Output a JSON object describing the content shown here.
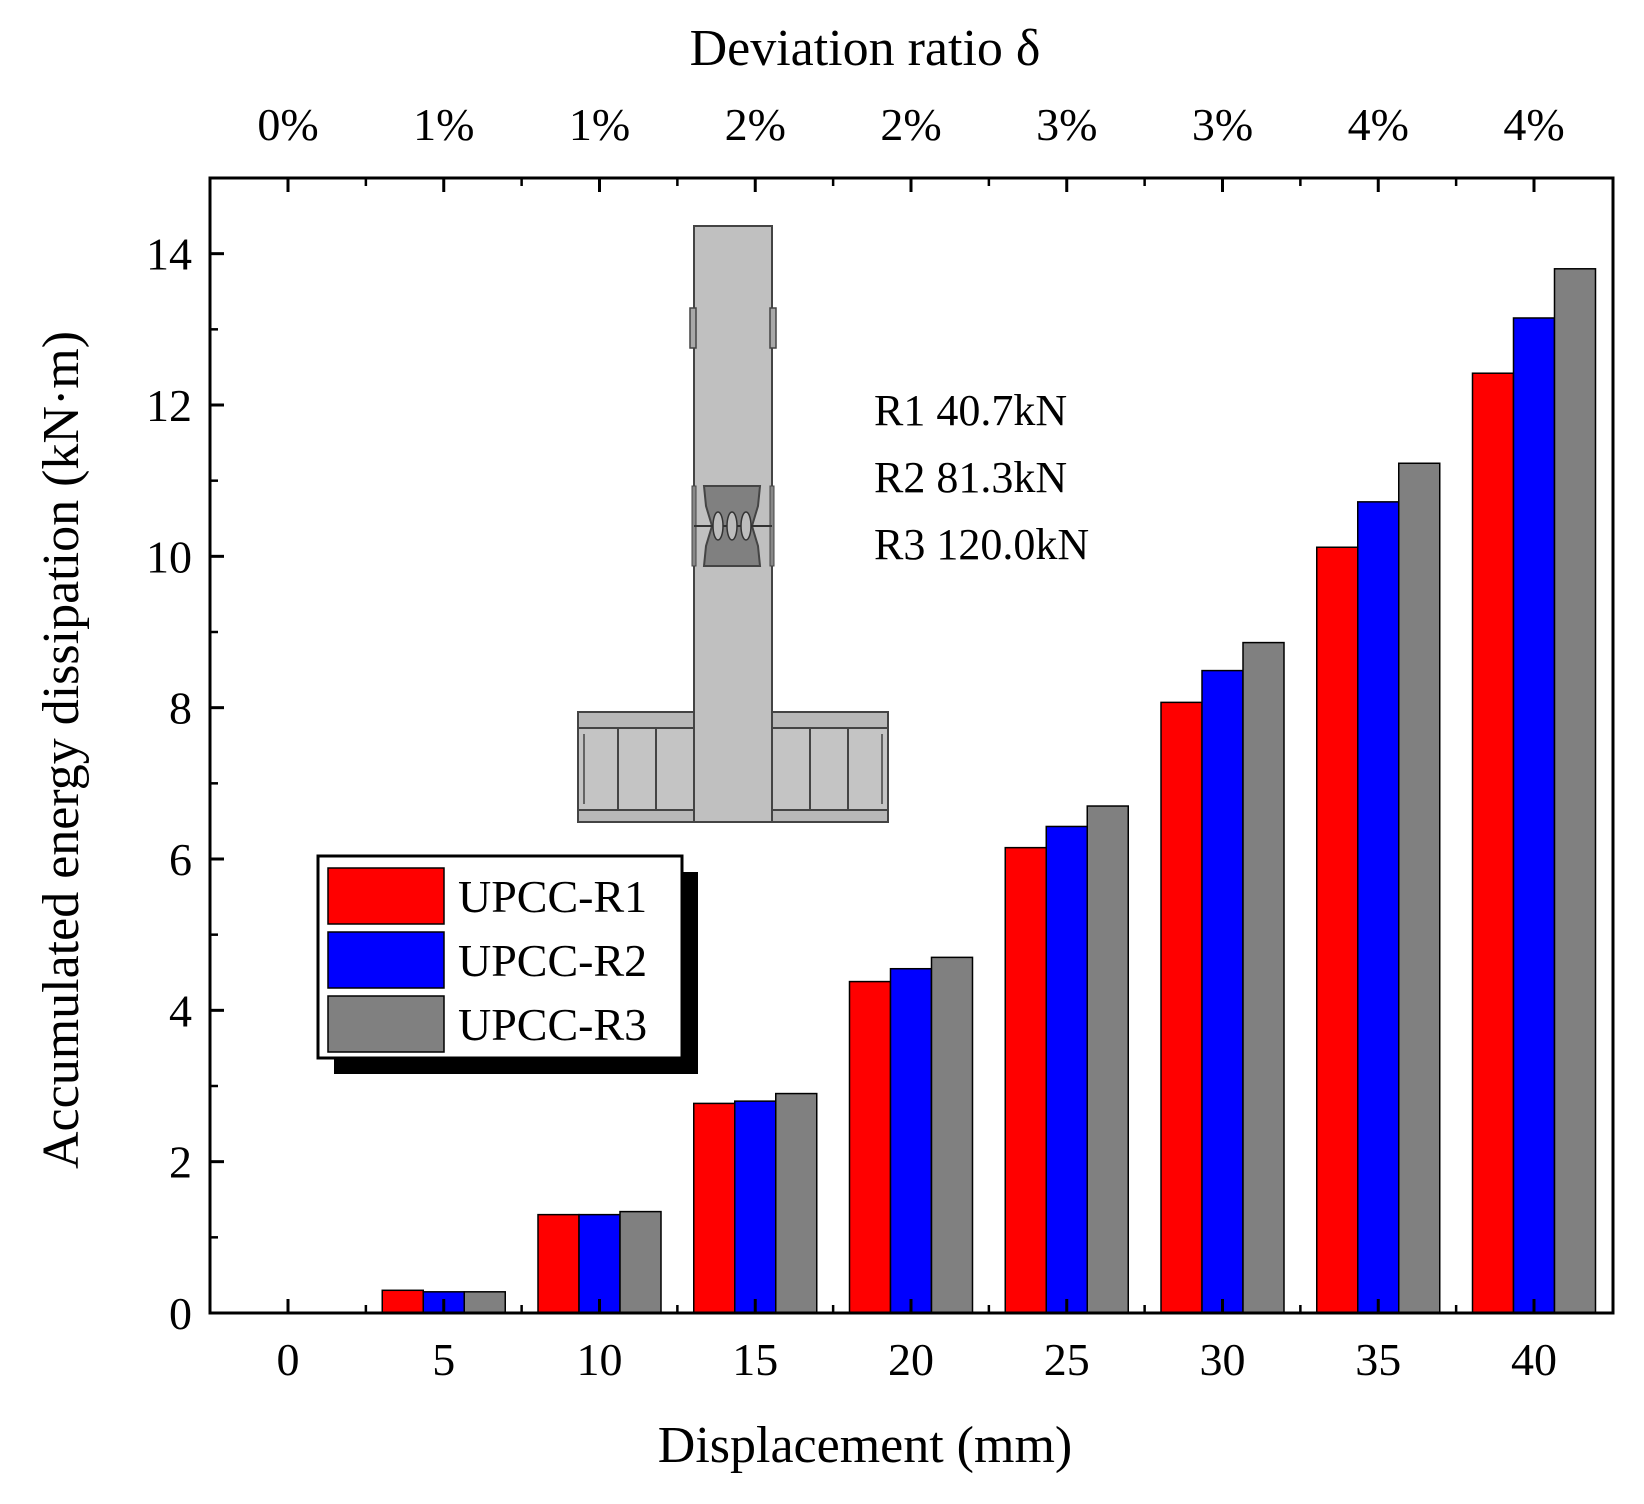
{
  "chart_data": {
    "type": "bar",
    "xlabel": "Displacement (mm)",
    "ylabel": "Accumulated energy dissipation (kN·m)",
    "top_axis_title": "Deviation ratio δ",
    "categories": [
      "0",
      "5",
      "10",
      "15",
      "20",
      "25",
      "30",
      "35",
      "40"
    ],
    "top_tick_labels": [
      "0%",
      "1%",
      "1%",
      "2%",
      "2%",
      "3%",
      "3%",
      "4%",
      "4%"
    ],
    "y_ticks": [
      "0",
      "2",
      "4",
      "6",
      "8",
      "10",
      "12",
      "14"
    ],
    "ylim": [
      0,
      15
    ],
    "grid": false,
    "legend_position": "middle-left",
    "series": [
      {
        "name": "UPCC-R1",
        "color": "#ff0000",
        "values": [
          0,
          0.3,
          1.3,
          2.77,
          4.38,
          6.15,
          8.07,
          10.12,
          12.42
        ]
      },
      {
        "name": "UPCC-R2",
        "color": "#0000ff",
        "values": [
          0,
          0.28,
          1.3,
          2.8,
          4.55,
          6.43,
          8.49,
          10.72,
          13.15
        ]
      },
      {
        "name": "UPCC-R3",
        "color": "#808080",
        "values": [
          0,
          0.28,
          1.34,
          2.9,
          4.7,
          6.7,
          8.86,
          11.23,
          13.8
        ]
      }
    ],
    "annotations": [
      "R1 40.7kN",
      "R2 81.3kN",
      "R3 120.0kN"
    ]
  }
}
